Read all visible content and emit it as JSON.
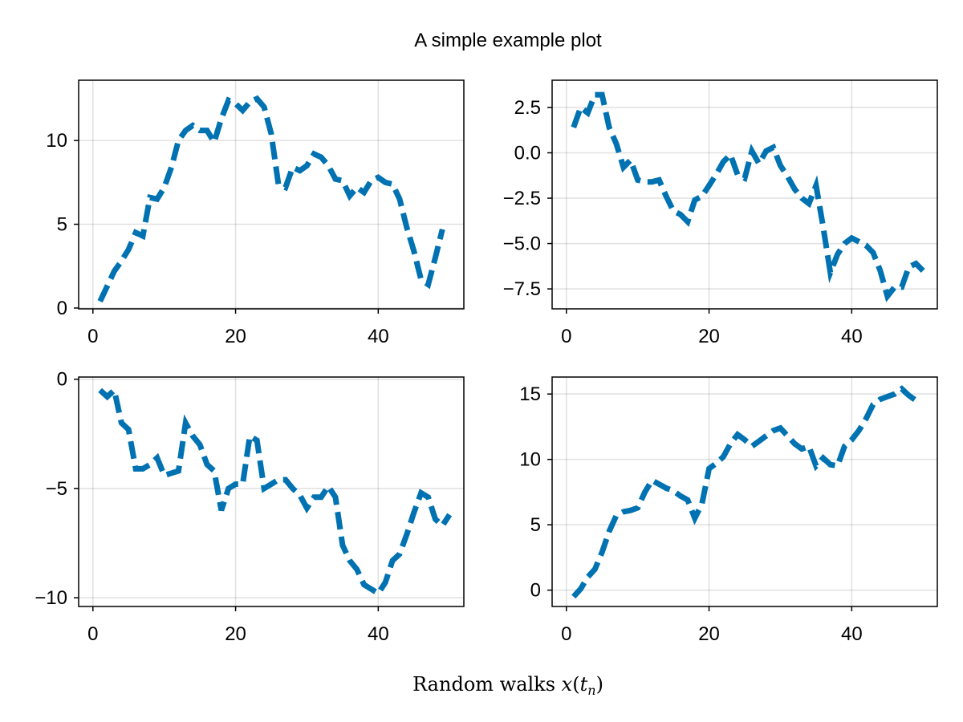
{
  "figure": {
    "title": "A simple example plot",
    "xlabel_text": "Random walks ",
    "xlabel_math_var": "x",
    "xlabel_math_arg": "t",
    "xlabel_math_sub": "n"
  },
  "chart_data": [
    {
      "type": "line",
      "title": "",
      "xlim": [
        -2,
        52
      ],
      "ylim": [
        -0.05,
        13.6
      ],
      "xticks": [
        0,
        20,
        40
      ],
      "xtick_labels": [
        "0",
        "20",
        "40"
      ],
      "yticks": [
        0,
        5,
        10
      ],
      "ytick_labels": [
        "0",
        "5",
        "10"
      ],
      "grid": true,
      "color": "#0072B2",
      "linestyle": "dashed",
      "series": [
        {
          "x": [
            1,
            2,
            3,
            4,
            5,
            6,
            7,
            8,
            9,
            10,
            11,
            12,
            13,
            14,
            15,
            16,
            17,
            18,
            19,
            20,
            21,
            22,
            23,
            24,
            25,
            26,
            27,
            28,
            29,
            30,
            31,
            32,
            33,
            34,
            35,
            36,
            37,
            38,
            39,
            40,
            41,
            42,
            43,
            44,
            45,
            46,
            47,
            48,
            49
          ],
          "values": [
            0.4,
            1.3,
            2.2,
            2.8,
            3.5,
            4.5,
            4.3,
            6.6,
            6.5,
            7.2,
            8.4,
            10.0,
            10.6,
            10.9,
            10.6,
            10.6,
            9.9,
            11.3,
            12.4,
            12.2,
            11.8,
            12.3,
            12.5,
            12.0,
            10.4,
            7.4,
            7.2,
            8.4,
            8.2,
            8.5,
            9.2,
            9.0,
            8.5,
            7.7,
            7.6,
            6.7,
            7.2,
            6.9,
            7.6,
            7.8,
            7.5,
            7.4,
            6.5,
            4.8,
            3.4,
            1.7,
            1.4,
            3.0,
            4.7
          ]
        }
      ]
    },
    {
      "type": "line",
      "title": "",
      "xlim": [
        -2,
        52
      ],
      "ylim": [
        -8.6,
        4.0
      ],
      "xticks": [
        0,
        20,
        40
      ],
      "xtick_labels": [
        "0",
        "20",
        "40"
      ],
      "yticks": [
        2.5,
        0,
        -2.5,
        -5,
        -7.5
      ],
      "ytick_labels": [
        "2.5",
        "0.0",
        "−2.5",
        "−5.0",
        "−7.5"
      ],
      "grid": true,
      "color": "#0072B2",
      "linestyle": "dashed",
      "series": [
        {
          "x": [
            1,
            2,
            3,
            4,
            5,
            6,
            7,
            8,
            9,
            10,
            11,
            12,
            13,
            14,
            15,
            16,
            17,
            18,
            19,
            20,
            21,
            22,
            23,
            24,
            25,
            26,
            27,
            28,
            29,
            30,
            31,
            32,
            33,
            34,
            35,
            36,
            37,
            38,
            39,
            40,
            41,
            42,
            43,
            44,
            45,
            46,
            47,
            48,
            49,
            50
          ],
          "values": [
            1.4,
            2.5,
            2.2,
            3.2,
            3.2,
            1.4,
            0.5,
            -0.8,
            -0.4,
            -1.5,
            -1.6,
            -1.6,
            -1.5,
            -2.4,
            -3.2,
            -3.4,
            -3.8,
            -2.6,
            -2.4,
            -1.8,
            -1.2,
            -0.5,
            -0.1,
            -1.2,
            -1.4,
            0.1,
            -0.6,
            0.1,
            0.3,
            -0.7,
            -1.3,
            -2.0,
            -2.5,
            -2.8,
            -1.8,
            -4.1,
            -6.6,
            -5.6,
            -5.0,
            -4.7,
            -4.9,
            -5.1,
            -5.5,
            -6.5,
            -7.9,
            -7.4,
            -7.4,
            -6.3,
            -6.1,
            -6.5
          ]
        }
      ]
    },
    {
      "type": "line",
      "title": "",
      "xlim": [
        -2,
        52
      ],
      "ylim": [
        -10.4,
        0.1
      ],
      "xticks": [
        0,
        20,
        40
      ],
      "xtick_labels": [
        "0",
        "20",
        "40"
      ],
      "yticks": [
        0,
        -5,
        -10
      ],
      "ytick_labels": [
        "0",
        "−5",
        "−10"
      ],
      "grid": true,
      "color": "#0072B2",
      "linestyle": "dashed",
      "series": [
        {
          "x": [
            1,
            2,
            3,
            4,
            5,
            6,
            7,
            8,
            9,
            10,
            11,
            12,
            13,
            14,
            15,
            16,
            17,
            18,
            19,
            20,
            21,
            22,
            23,
            24,
            25,
            26,
            27,
            28,
            29,
            30,
            31,
            32,
            33,
            34,
            35,
            36,
            37,
            38,
            39,
            40,
            41,
            42,
            43,
            44,
            45,
            46,
            47,
            48,
            49,
            50
          ],
          "values": [
            -0.5,
            -0.8,
            -0.5,
            -2.0,
            -2.3,
            -4.1,
            -4.1,
            -3.9,
            -3.6,
            -4.4,
            -4.3,
            -4.2,
            -2.0,
            -2.6,
            -3.0,
            -3.9,
            -4.2,
            -6.0,
            -5.0,
            -4.8,
            -4.8,
            -2.6,
            -2.8,
            -5.0,
            -4.8,
            -4.6,
            -4.6,
            -5.0,
            -5.3,
            -5.9,
            -5.4,
            -5.4,
            -4.9,
            -5.4,
            -7.6,
            -8.3,
            -8.7,
            -9.4,
            -9.6,
            -9.8,
            -9.3,
            -8.3,
            -8.0,
            -7.1,
            -6.1,
            -5.2,
            -5.4,
            -6.4,
            -6.7,
            -6.2
          ]
        }
      ]
    },
    {
      "type": "line",
      "title": "",
      "xlim": [
        -2,
        52
      ],
      "ylim": [
        -1.25,
        16.3
      ],
      "xticks": [
        0,
        20,
        40
      ],
      "xtick_labels": [
        "0",
        "20",
        "40"
      ],
      "yticks": [
        0,
        5,
        10,
        15
      ],
      "ytick_labels": [
        "0",
        "5",
        "10",
        "15"
      ],
      "grid": true,
      "color": "#0072B2",
      "linestyle": "dashed",
      "series": [
        {
          "x": [
            1,
            2,
            3,
            4,
            5,
            6,
            7,
            8,
            9,
            10,
            11,
            12,
            13,
            14,
            15,
            16,
            17,
            18,
            19,
            20,
            21,
            22,
            23,
            24,
            25,
            26,
            27,
            28,
            29,
            30,
            31,
            32,
            33,
            34,
            35,
            36,
            37,
            38,
            39,
            40,
            41,
            42,
            43,
            44,
            45,
            46,
            47,
            48,
            49
          ],
          "values": [
            -0.5,
            0.1,
            1.0,
            1.6,
            2.9,
            4.5,
            5.7,
            6.0,
            6.1,
            6.3,
            7.5,
            8.4,
            8.1,
            7.8,
            7.6,
            7.2,
            6.9,
            5.5,
            6.6,
            9.3,
            9.7,
            10.2,
            11.2,
            11.9,
            11.5,
            11.0,
            11.4,
            11.8,
            12.2,
            12.4,
            11.8,
            11.2,
            10.8,
            11.0,
            9.5,
            10.1,
            9.6,
            9.5,
            11.0,
            11.5,
            12.2,
            13.1,
            14.2,
            14.6,
            14.8,
            15.0,
            15.4,
            14.9,
            14.5
          ]
        }
      ]
    }
  ]
}
